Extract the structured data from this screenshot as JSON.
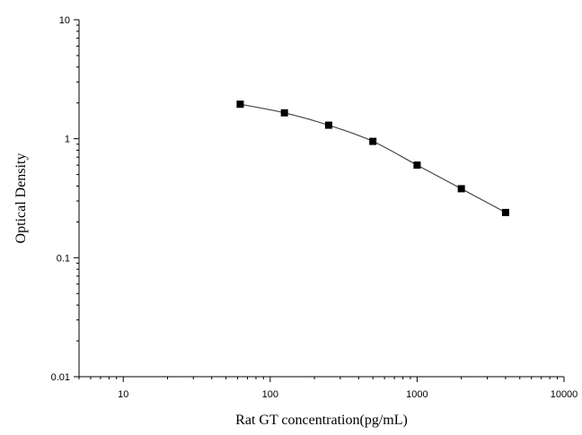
{
  "chart_data": {
    "type": "line",
    "title": "",
    "xlabel": "Rat GT concentration(pg/mL)",
    "ylabel": "Optical Density",
    "xscale": "log",
    "yscale": "log",
    "xlim": [
      5,
      10000
    ],
    "ylim": [
      0.01,
      10
    ],
    "x_ticks": [
      10,
      100,
      1000,
      10000
    ],
    "x_tick_labels": [
      "10",
      "100",
      "1000",
      "10000"
    ],
    "y_ticks": [
      0.01,
      0.1,
      1,
      10
    ],
    "y_tick_labels": [
      "0.01",
      "0.1",
      "1",
      "10"
    ],
    "grid": false,
    "legend": "none",
    "marker": "square",
    "series": [
      {
        "x": [
          62.5,
          125,
          250,
          500,
          1000,
          2000,
          4000
        ],
        "y": [
          1.95,
          1.65,
          1.3,
          0.95,
          0.6,
          0.38,
          0.24
        ]
      }
    ]
  }
}
